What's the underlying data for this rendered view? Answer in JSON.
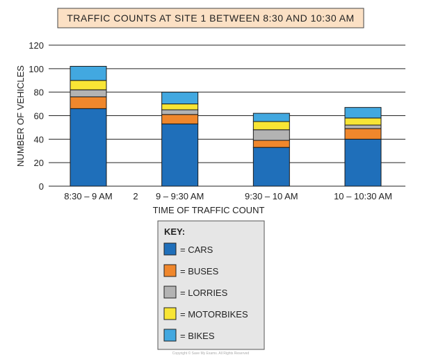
{
  "chart_data": {
    "type": "bar",
    "stacked": true,
    "title": "TRAFFIC COUNTS AT SITE 1 BETWEEN 8:30 AND 10:30 AM",
    "xlabel": "TIME OF TRAFFIC COUNT",
    "ylabel": "NUMBER OF VEHICLES",
    "ylim": [
      0,
      120
    ],
    "yticks": [
      "0",
      "20",
      "40",
      "60",
      "80",
      "100",
      "120"
    ],
    "categories": [
      "8:30 – 9 AM",
      "9 – 9:30 AM",
      "9:30 – 10 AM",
      "10 – 10:30 AM"
    ],
    "stray_label": "2",
    "grid": true,
    "legend_position": "bottom",
    "series": [
      {
        "name": "CARS",
        "color": "#1f6fba",
        "values": [
          66,
          53,
          33,
          40
        ]
      },
      {
        "name": "BUSES",
        "color": "#f0872c",
        "values": [
          10,
          8,
          6,
          9
        ]
      },
      {
        "name": "LORRIES",
        "color": "#b3b3b3",
        "values": [
          6,
          4,
          9,
          3
        ]
      },
      {
        "name": "MOTORBIKES",
        "color": "#f8e535",
        "values": [
          8,
          5,
          7,
          6
        ]
      },
      {
        "name": "BIKES",
        "color": "#42a8e0",
        "values": [
          12,
          10,
          7,
          9
        ]
      }
    ]
  },
  "key": {
    "heading": "KEY:",
    "items": [
      "= CARS",
      "= BUSES",
      "= LORRIES",
      "= MOTORBIKES",
      "= BIKES"
    ]
  },
  "copyright": "Copyright © Save My Exams. All Rights Reserved",
  "colors": {
    "title_bg": "#fbe0c4",
    "key_bg": "#e6e6e6"
  }
}
